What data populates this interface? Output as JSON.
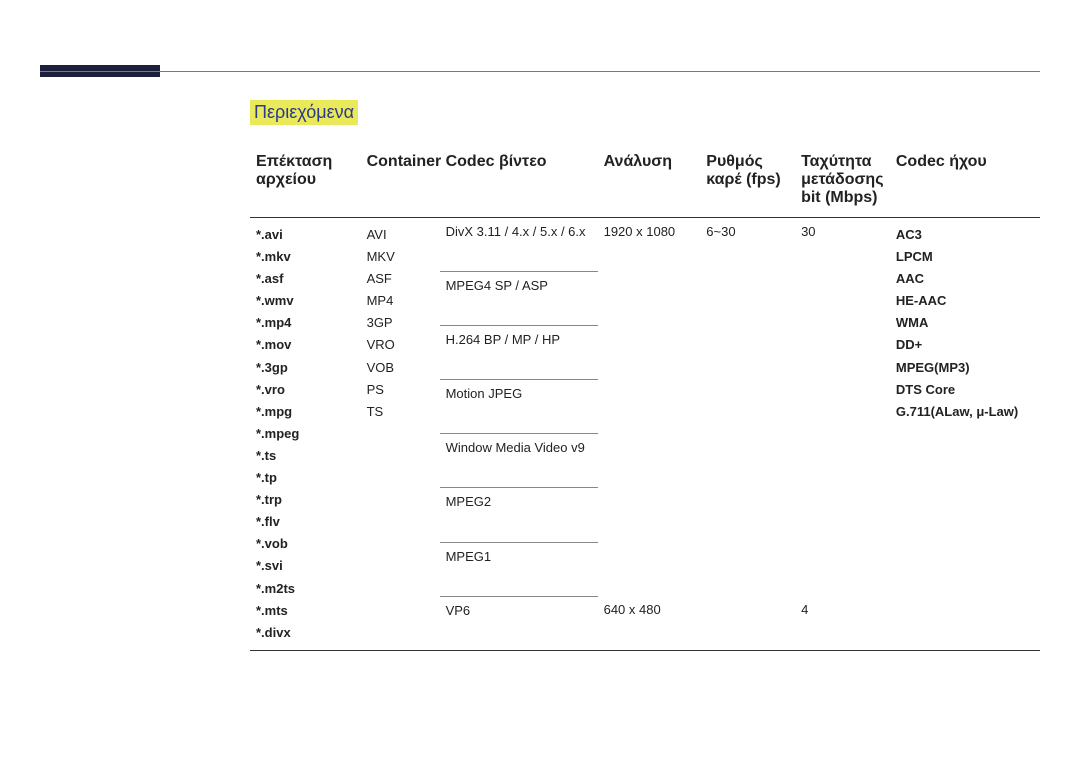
{
  "toc_label": "Περιεχόμενα",
  "columns": {
    "ext": "Επέκταση αρχείου",
    "container": "Container",
    "vcodec": "Codec βίντεο",
    "resolution": "Ανάλυση",
    "fps": "Ρυθμός καρέ (fps)",
    "bitrate": "Ταχύτητα μετάδοσης bit (Mbps)",
    "acodec": "Codec ήχου"
  },
  "extensions": [
    "*.avi",
    "*.mkv",
    "*.asf",
    "*.wmv",
    "*.mp4",
    "*.mov",
    "*.3gp",
    "*.vro",
    "*.mpg",
    "*.mpeg",
    "*.ts",
    "*.tp",
    "*.trp",
    "*.flv",
    "*.vob",
    "*.svi",
    "*.m2ts",
    "*.mts",
    "*.divx"
  ],
  "containers": [
    "AVI",
    "MKV",
    "ASF",
    "MP4",
    "3GP",
    "VRO",
    "VOB",
    "PS",
    "TS"
  ],
  "vcodecs_top": [
    "DivX 3.11 / 4.x / 5.x / 6.x",
    "MPEG4 SP / ASP",
    "H.264 BP / MP / HP",
    "Motion JPEG",
    "Window Media Video v9",
    "MPEG2",
    "MPEG1"
  ],
  "vcodec_bottom": "VP6",
  "res_top": "1920 x 1080",
  "res_bottom": "640 x 480",
  "fps_top": "6~30",
  "bitrate_top": "30",
  "bitrate_bottom": "4",
  "acodecs": [
    "AC3",
    "LPCM",
    "AAC",
    "HE-AAC",
    "WMA",
    "DD+",
    "MPEG(MP3)",
    "DTS Core",
    "G.711(ALaw, μ-Law)"
  ],
  "colors": {
    "highlight_bg": "#e9e95a",
    "highlight_text": "#2b3a8a",
    "topbar": "#1b1f3b",
    "border_heavy": "#333333",
    "border_light": "#888888",
    "text": "#222222",
    "background": "#ffffff"
  },
  "typography": {
    "header_fontsize": 16,
    "cell_fontsize": 13,
    "toc_fontsize": 18,
    "font_family": "Arial"
  },
  "table": {
    "col_widths_pct": [
      14,
      10,
      20,
      13,
      12,
      12,
      19
    ]
  }
}
